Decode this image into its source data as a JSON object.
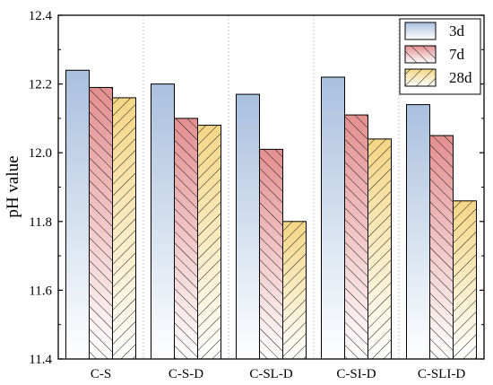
{
  "chart_data": {
    "type": "bar",
    "categories": [
      "C-S",
      "C-S-D",
      "C-SL-D",
      "C-SI-D",
      "C-SLI-D"
    ],
    "series": [
      {
        "name": "3d",
        "values": [
          12.24,
          12.2,
          12.17,
          12.22,
          12.14
        ]
      },
      {
        "name": "7d",
        "values": [
          12.19,
          12.1,
          12.01,
          12.11,
          12.05
        ]
      },
      {
        "name": "28d",
        "values": [
          12.16,
          12.08,
          11.8,
          12.04,
          11.86
        ]
      }
    ],
    "title": "",
    "xlabel": "",
    "ylabel": "pH value",
    "ylim": [
      11.4,
      12.4
    ],
    "yticks": [
      "11.4",
      "11.6",
      "11.8",
      "12.0",
      "12.2",
      "12.4"
    ],
    "legend_position": "top-right",
    "grid": "vertical dotted separators between categories",
    "colors": {
      "3d": {
        "top": "#a9c0de",
        "bottom": "#ffffff",
        "hatch": "none"
      },
      "7d": {
        "top": "#e59596",
        "bottom": "#ffffff",
        "hatch": "forward diagonal"
      },
      "28d": {
        "top": "#f5d98c",
        "bottom": "#ffffff",
        "hatch": "back diagonal"
      }
    }
  }
}
